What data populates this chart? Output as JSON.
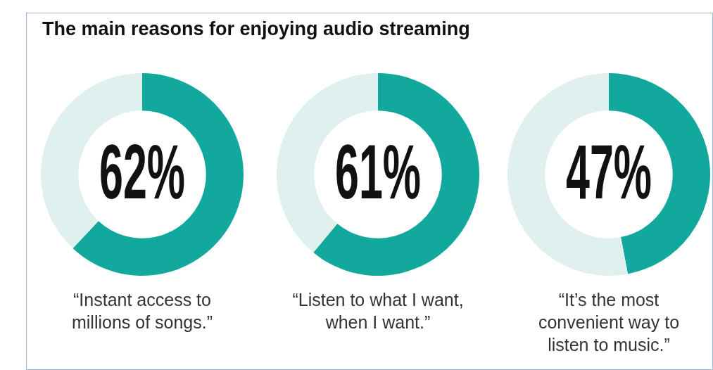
{
  "chart_data": [
    {
      "type": "other",
      "title": "The main reasons for enjoying audio streaming"
    },
    {
      "type": "donut",
      "xlabel": "“Instant access to millions of songs.”",
      "categories": [
        null,
        null
      ],
      "values": [
        62,
        38
      ],
      "colors": [
        "#13a89e",
        "#dff0ef"
      ],
      "value_labels": [
        "62%",
        null
      ]
    },
    {
      "type": "donut",
      "xlabel": "“Listen to what I want, when I want.”",
      "categories": [
        null,
        null
      ],
      "values": [
        61,
        39
      ],
      "colors": [
        "#13a89e",
        "#dff0ef"
      ],
      "value_labels": [
        "61%",
        null
      ]
    },
    {
      "type": "donut",
      "xlabel": "“It’s the most convenient way to listen to music.”",
      "categories": [
        null,
        null
      ],
      "values": [
        47,
        53
      ],
      "colors": [
        "#13a89e",
        "#dff0ef"
      ],
      "value_labels": [
        "47%",
        null
      ]
    }
  ]
}
